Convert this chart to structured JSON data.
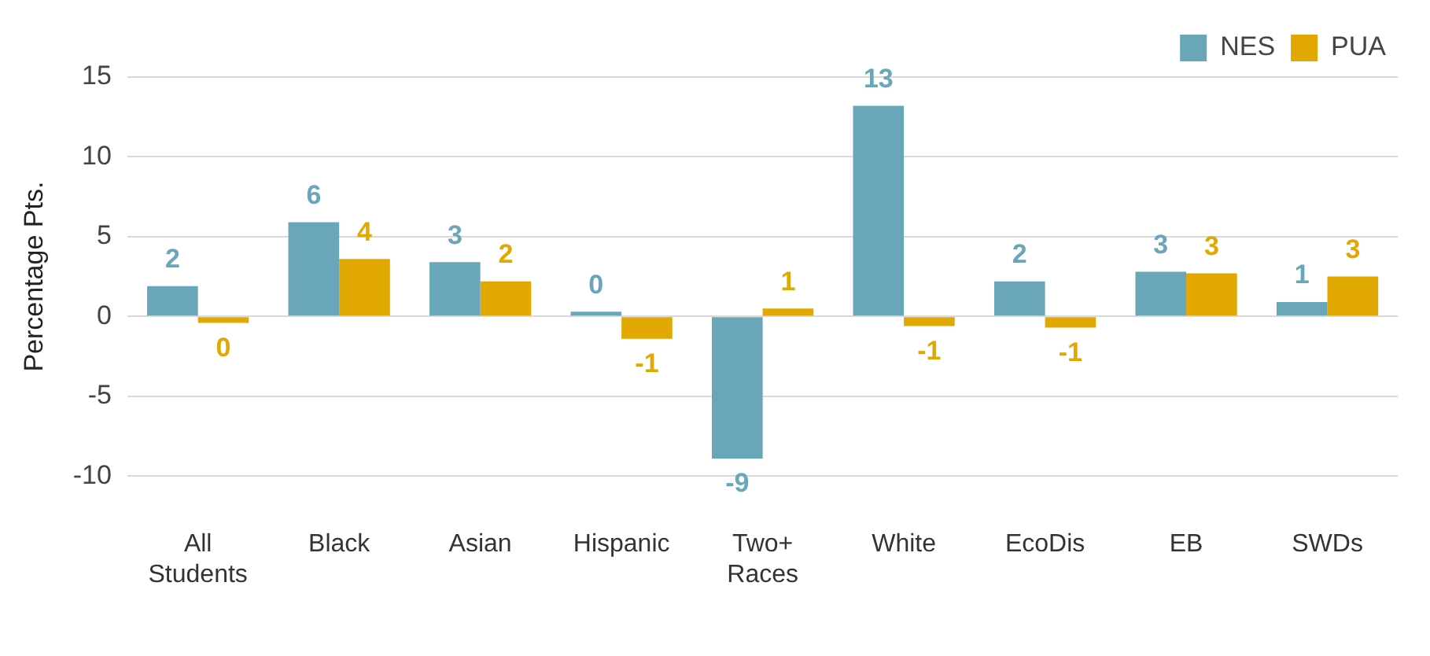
{
  "chart_data": {
    "type": "bar",
    "ylabel": "Percentage Pts.",
    "categories": [
      "All Students",
      "Black",
      "Asian",
      "Hispanic",
      "Two+ Races",
      "White",
      "EcoDis",
      "EB",
      "SWDs"
    ],
    "series": [
      {
        "name": "NES",
        "color": "#6aa6b9",
        "values": [
          1.9,
          5.9,
          3.4,
          0.3,
          -8.9,
          13.2,
          2.2,
          2.8,
          0.9
        ],
        "value_labels": [
          "2",
          "6",
          "3",
          "0",
          "-9",
          "13",
          "2",
          "3",
          "1"
        ]
      },
      {
        "name": "PUA",
        "color": "#e0a800",
        "values": [
          -0.4,
          3.6,
          2.2,
          -1.4,
          0.5,
          -0.6,
          -0.7,
          2.7,
          2.5
        ],
        "value_labels": [
          "0",
          "4",
          "2",
          "-1",
          "1",
          "-1",
          "-1",
          "3",
          "3"
        ]
      }
    ],
    "ylim": [
      -10,
      15
    ],
    "yticks": [
      -10,
      -5,
      0,
      5,
      10,
      15
    ],
    "grid": "y",
    "legend": "top right"
  }
}
